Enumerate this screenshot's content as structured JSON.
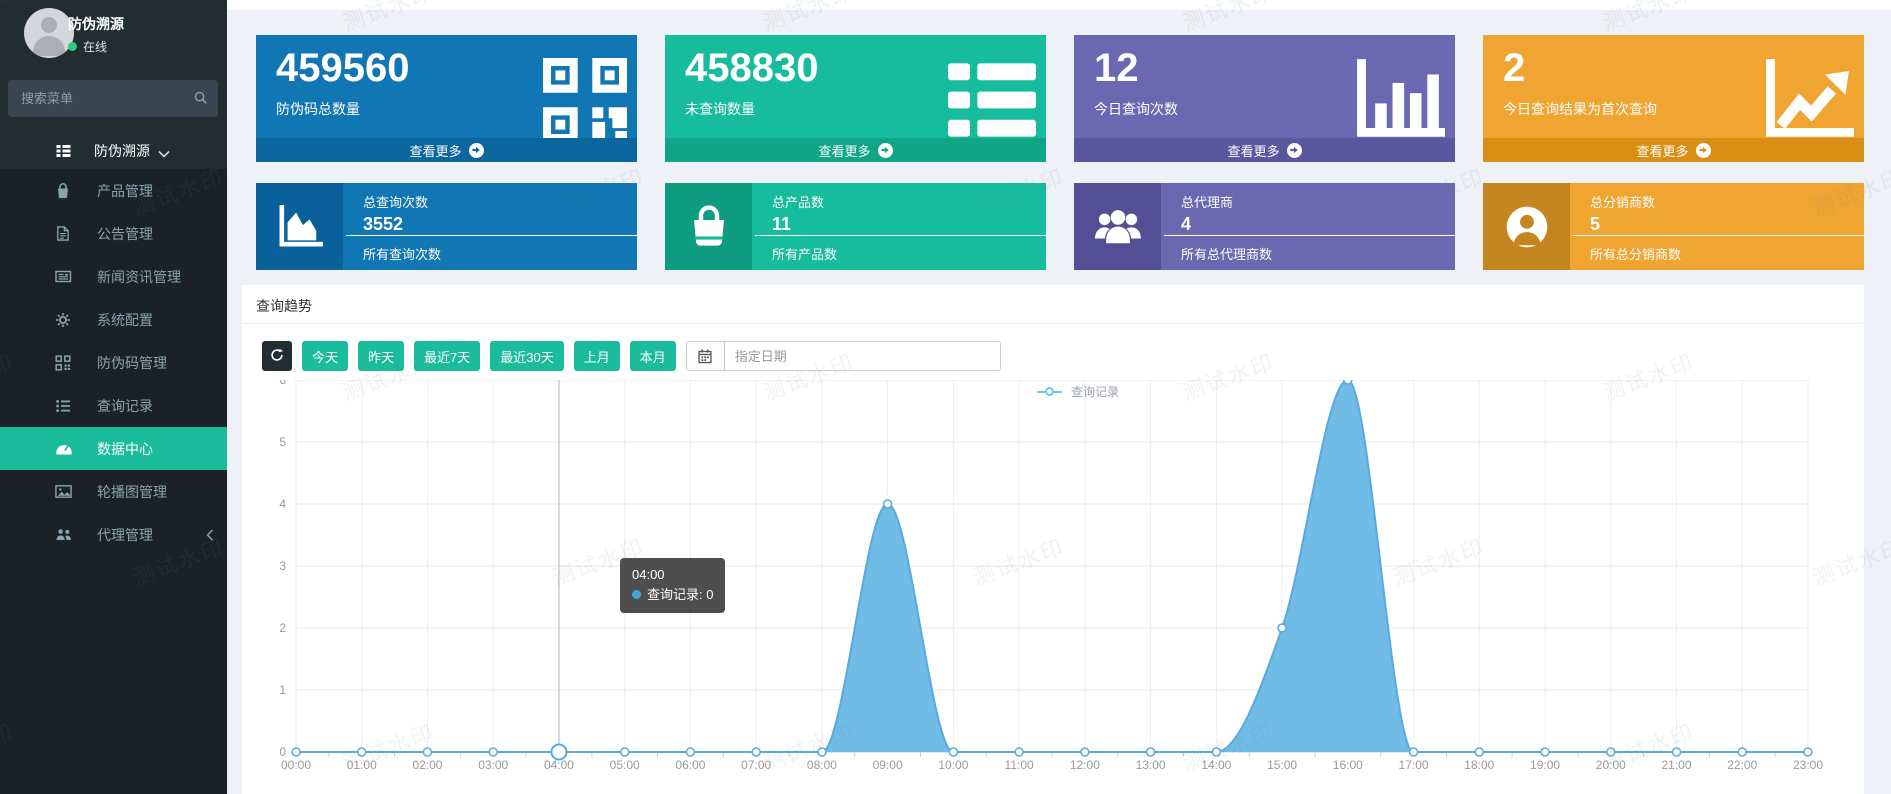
{
  "watermark": "测试水印",
  "sidebar": {
    "user": {
      "name": "防伪溯源",
      "status": "在线"
    },
    "search_placeholder": "搜索菜单",
    "parent": {
      "label": "防伪溯源"
    },
    "menu": [
      {
        "label": "产品管理"
      },
      {
        "label": "公告管理"
      },
      {
        "label": "新闻资讯管理"
      },
      {
        "label": "系统配置"
      },
      {
        "label": "防伪码管理"
      },
      {
        "label": "查询记录"
      },
      {
        "label": "数据中心",
        "active": true
      },
      {
        "label": "轮播图管理"
      },
      {
        "label": "代理管理"
      }
    ]
  },
  "cards": [
    {
      "value": "459560",
      "label": "防伪码总数量",
      "more": "查看更多",
      "color": "#1176b4"
    },
    {
      "value": "458830",
      "label": "未查询数量",
      "more": "查看更多",
      "color": "#17bc9c"
    },
    {
      "value": "12",
      "label": "今日查询次数",
      "more": "查看更多",
      "color": "#6b68b1"
    },
    {
      "value": "2",
      "label": "今日查询结果为首次查询",
      "more": "查看更多",
      "color": "#f0a432"
    }
  ],
  "boxes": [
    {
      "title": "总查询次数",
      "value": "3552",
      "footer": "所有查询次数",
      "color": "#1176b4"
    },
    {
      "title": "总产品数",
      "value": "11",
      "footer": "所有产品数",
      "color": "#17bc9c"
    },
    {
      "title": "总代理商",
      "value": "4",
      "footer": "所有总代理商数",
      "color": "#6b68b1"
    },
    {
      "title": "总分销商数",
      "value": "5",
      "footer": "所有总分销商数",
      "color": "#f0a432"
    }
  ],
  "trend": {
    "title": "查询趋势",
    "ranges": [
      "今天",
      "昨天",
      "最近7天",
      "最近30天",
      "上月",
      "本月"
    ],
    "date_placeholder": "指定日期",
    "tooltip": {
      "time": "04:00",
      "series_line": "查询记录: 0",
      "x_index": 4
    }
  },
  "chart_data": {
    "type": "area",
    "title": "查询趋势",
    "x": [
      "00:00",
      "01:00",
      "02:00",
      "03:00",
      "04:00",
      "05:00",
      "06:00",
      "07:00",
      "08:00",
      "09:00",
      "10:00",
      "11:00",
      "12:00",
      "13:00",
      "14:00",
      "15:00",
      "16:00",
      "17:00",
      "18:00",
      "19:00",
      "20:00",
      "21:00",
      "22:00",
      "23:00"
    ],
    "series": [
      {
        "name": "查询记录",
        "values": [
          0,
          0,
          0,
          0,
          0,
          0,
          0,
          0,
          0,
          4,
          0,
          0,
          0,
          0,
          0,
          2,
          6,
          0,
          0,
          0,
          0,
          0,
          0,
          0
        ]
      }
    ],
    "ylim": [
      0,
      6
    ],
    "yticks": [
      0,
      1,
      2,
      3,
      4,
      5,
      6
    ],
    "grid": true,
    "legend_position": "top",
    "line_color": "#57aadf",
    "fill_color": "#6ab9e6"
  }
}
